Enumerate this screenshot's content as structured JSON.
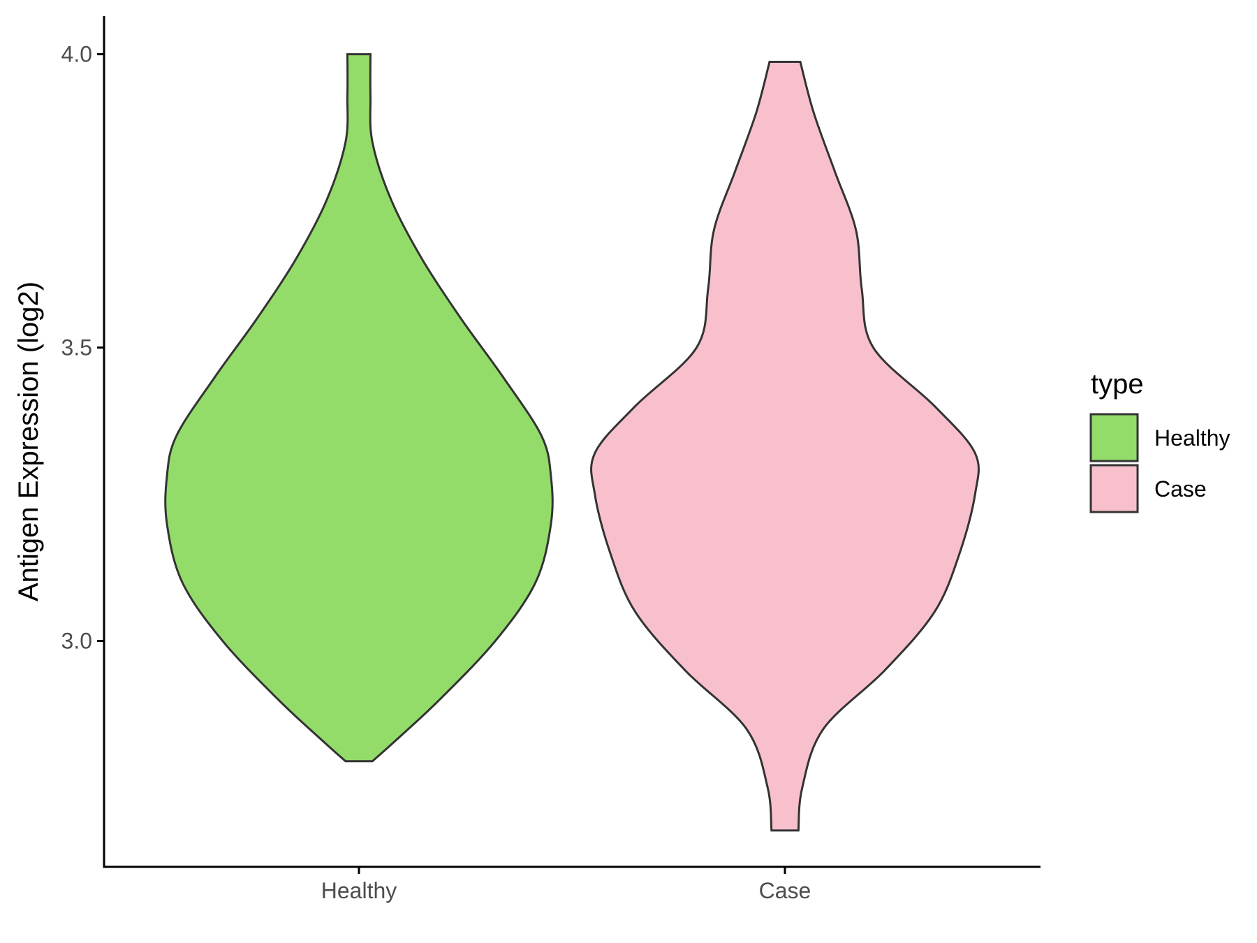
{
  "chart_data": {
    "type": "violin",
    "title": "",
    "xlabel": "",
    "ylabel": "Antigen Expression (log2)",
    "ylim": [
      2.615,
      4.065
    ],
    "y_ticks": [
      3.0,
      3.5,
      4.0
    ],
    "y_tick_labels": [
      "3.0",
      "3.5",
      "4.0"
    ],
    "categories": [
      "Healthy",
      "Case"
    ],
    "legend": {
      "title": "type",
      "position": "right",
      "entries": [
        {
          "label": "Healthy",
          "color": "#93dc6a"
        },
        {
          "label": "Case",
          "color": "#f7c0cc"
        }
      ]
    },
    "grid": false,
    "series": [
      {
        "category": "Healthy",
        "color": "#93dc6a",
        "min": 2.795,
        "max": 4.0,
        "density_profile": [
          {
            "y": 2.795,
            "w": 0.07
          },
          {
            "y": 2.83,
            "w": 0.19
          },
          {
            "y": 2.9,
            "w": 0.42
          },
          {
            "y": 3.0,
            "w": 0.71
          },
          {
            "y": 3.1,
            "w": 0.92
          },
          {
            "y": 3.2,
            "w": 1.0
          },
          {
            "y": 3.28,
            "w": 1.0
          },
          {
            "y": 3.35,
            "w": 0.95
          },
          {
            "y": 3.45,
            "w": 0.75
          },
          {
            "y": 3.55,
            "w": 0.53
          },
          {
            "y": 3.65,
            "w": 0.33
          },
          {
            "y": 3.75,
            "w": 0.17
          },
          {
            "y": 3.85,
            "w": 0.07
          },
          {
            "y": 3.93,
            "w": 0.06
          },
          {
            "y": 4.0,
            "w": 0.06
          }
        ]
      },
      {
        "category": "Case",
        "color": "#f7c0cc",
        "min": 2.677,
        "max": 3.987,
        "density_profile": [
          {
            "y": 2.677,
            "w": 0.07
          },
          {
            "y": 2.75,
            "w": 0.09
          },
          {
            "y": 2.85,
            "w": 0.2
          },
          {
            "y": 2.95,
            "w": 0.52
          },
          {
            "y": 3.05,
            "w": 0.78
          },
          {
            "y": 3.15,
            "w": 0.91
          },
          {
            "y": 3.25,
            "w": 0.99
          },
          {
            "y": 3.32,
            "w": 0.99
          },
          {
            "y": 3.4,
            "w": 0.78
          },
          {
            "y": 3.5,
            "w": 0.46
          },
          {
            "y": 3.6,
            "w": 0.4
          },
          {
            "y": 3.7,
            "w": 0.37
          },
          {
            "y": 3.8,
            "w": 0.26
          },
          {
            "y": 3.9,
            "w": 0.15
          },
          {
            "y": 3.987,
            "w": 0.08
          }
        ]
      }
    ]
  }
}
